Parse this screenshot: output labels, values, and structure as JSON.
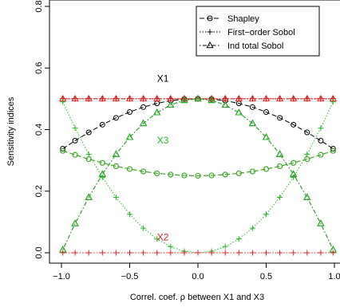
{
  "chart_data": {
    "type": "line",
    "title": "",
    "xlabel": "Correl. coef. ρ between X1 and X3",
    "ylabel": "Sensitivity indices",
    "xlim": [
      -1.0,
      1.0
    ],
    "ylim": [
      0.0,
      0.8
    ],
    "x_ticks": [
      "−1.0",
      "−0.5",
      "0.0",
      "0.5",
      "1.0"
    ],
    "y_ticks": [
      "0.0",
      "0.2",
      "0.4",
      "0.6",
      "0.8"
    ],
    "grid": false,
    "legend_position": "top-right",
    "legend": [
      {
        "label": "Shapley",
        "marker": "circle",
        "line": "longdash"
      },
      {
        "label": "First−order Sobol",
        "marker": "plus",
        "line": "dotted"
      },
      {
        "label": "Ind total Sobol",
        "marker": "triangle",
        "line": "dotdash"
      }
    ],
    "annotations": [
      {
        "text": "X1",
        "x": -0.3,
        "y": 0.555,
        "color": "#000000"
      },
      {
        "text": "X3",
        "x": -0.3,
        "y": 0.355,
        "color": "#22bb22"
      },
      {
        "text": "X2",
        "x": -0.3,
        "y": 0.04,
        "color": "#dd2222"
      }
    ],
    "x": [
      -0.99,
      -0.9,
      -0.8,
      -0.7,
      -0.6,
      -0.5,
      -0.4,
      -0.3,
      -0.2,
      -0.1,
      0.0,
      0.1,
      0.2,
      0.3,
      0.4,
      0.5,
      0.6,
      0.7,
      0.8,
      0.9,
      0.99
    ],
    "series": [
      {
        "variable": "X1",
        "index": "Shapley",
        "color": "#000000",
        "marker": "circle",
        "line": "longdash",
        "values": [
          0.338,
          0.364,
          0.391,
          0.416,
          0.438,
          0.457,
          0.473,
          0.485,
          0.494,
          0.499,
          0.5,
          0.499,
          0.494,
          0.485,
          0.473,
          0.457,
          0.438,
          0.416,
          0.391,
          0.364,
          0.338
        ]
      },
      {
        "variable": "X2",
        "index": "Shapley",
        "color": "#dd2222",
        "marker": "circle",
        "line": "longdash",
        "values": [
          0.331,
          0.318,
          0.304,
          0.292,
          0.281,
          0.272,
          0.264,
          0.258,
          0.254,
          0.251,
          0.25,
          0.251,
          0.254,
          0.258,
          0.264,
          0.272,
          0.281,
          0.292,
          0.304,
          0.318,
          0.331
        ]
      },
      {
        "variable": "X3",
        "index": "Shapley",
        "color": "#22bb22",
        "marker": "circle",
        "line": "longdash",
        "values": [
          0.331,
          0.318,
          0.304,
          0.292,
          0.281,
          0.272,
          0.264,
          0.258,
          0.254,
          0.251,
          0.25,
          0.251,
          0.254,
          0.258,
          0.264,
          0.272,
          0.281,
          0.292,
          0.304,
          0.318,
          0.331
        ]
      },
      {
        "variable": "X1",
        "index": "First-order Sobol",
        "color": "#000000",
        "marker": "plus",
        "line": "dotted",
        "values": [
          0.5,
          0.5,
          0.5,
          0.5,
          0.5,
          0.5,
          0.5,
          0.5,
          0.5,
          0.5,
          0.5,
          0.5,
          0.5,
          0.5,
          0.5,
          0.5,
          0.5,
          0.5,
          0.5,
          0.5,
          0.5
        ]
      },
      {
        "variable": "X2",
        "index": "First-order Sobol",
        "color": "#dd2222",
        "marker": "plus",
        "line": "dotted",
        "values": [
          0.5,
          0.5,
          0.5,
          0.5,
          0.5,
          0.5,
          0.5,
          0.5,
          0.5,
          0.5,
          0.5,
          0.5,
          0.5,
          0.5,
          0.5,
          0.5,
          0.5,
          0.5,
          0.5,
          0.5,
          0.5
        ]
      },
      {
        "variable": "X3",
        "index": "First-order Sobol",
        "color": "#22bb22",
        "marker": "plus",
        "line": "dotted",
        "values": [
          0.49,
          0.405,
          0.32,
          0.245,
          0.18,
          0.125,
          0.08,
          0.045,
          0.02,
          0.005,
          0.0,
          0.005,
          0.02,
          0.045,
          0.08,
          0.125,
          0.18,
          0.245,
          0.32,
          0.405,
          0.49
        ]
      },
      {
        "variable": "X1",
        "index": "Ind total Sobol",
        "color": "#000000",
        "marker": "triangle",
        "line": "dotdash",
        "values": [
          0.01,
          0.095,
          0.18,
          0.255,
          0.32,
          0.375,
          0.42,
          0.455,
          0.48,
          0.495,
          0.5,
          0.495,
          0.48,
          0.455,
          0.42,
          0.375,
          0.32,
          0.255,
          0.18,
          0.095,
          0.01
        ]
      },
      {
        "variable": "X2",
        "index": "Ind total Sobol",
        "color": "#dd2222",
        "marker": "triangle",
        "line": "dotdash",
        "values": [
          0.5,
          0.5,
          0.5,
          0.5,
          0.5,
          0.5,
          0.5,
          0.5,
          0.5,
          0.5,
          0.5,
          0.5,
          0.5,
          0.5,
          0.5,
          0.5,
          0.5,
          0.5,
          0.5,
          0.5,
          0.5
        ]
      },
      {
        "variable": "X3",
        "index": "Ind total Sobol",
        "color": "#22bb22",
        "marker": "triangle",
        "line": "dotdash",
        "values": [
          0.01,
          0.095,
          0.18,
          0.255,
          0.32,
          0.375,
          0.42,
          0.455,
          0.48,
          0.495,
          0.5,
          0.495,
          0.48,
          0.455,
          0.42,
          0.375,
          0.32,
          0.255,
          0.18,
          0.095,
          0.01
        ]
      },
      {
        "variable": "X2",
        "index": "First-order Sobol (zero)",
        "color": "#dd2222",
        "marker": "plus",
        "line": "dotted",
        "values": [
          0.0,
          0.0,
          0.0,
          0.0,
          0.0,
          0.0,
          0.0,
          0.0,
          0.0,
          0.0,
          0.0,
          0.0,
          0.0,
          0.0,
          0.0,
          0.0,
          0.0,
          0.0,
          0.0,
          0.0,
          0.0
        ]
      }
    ]
  }
}
